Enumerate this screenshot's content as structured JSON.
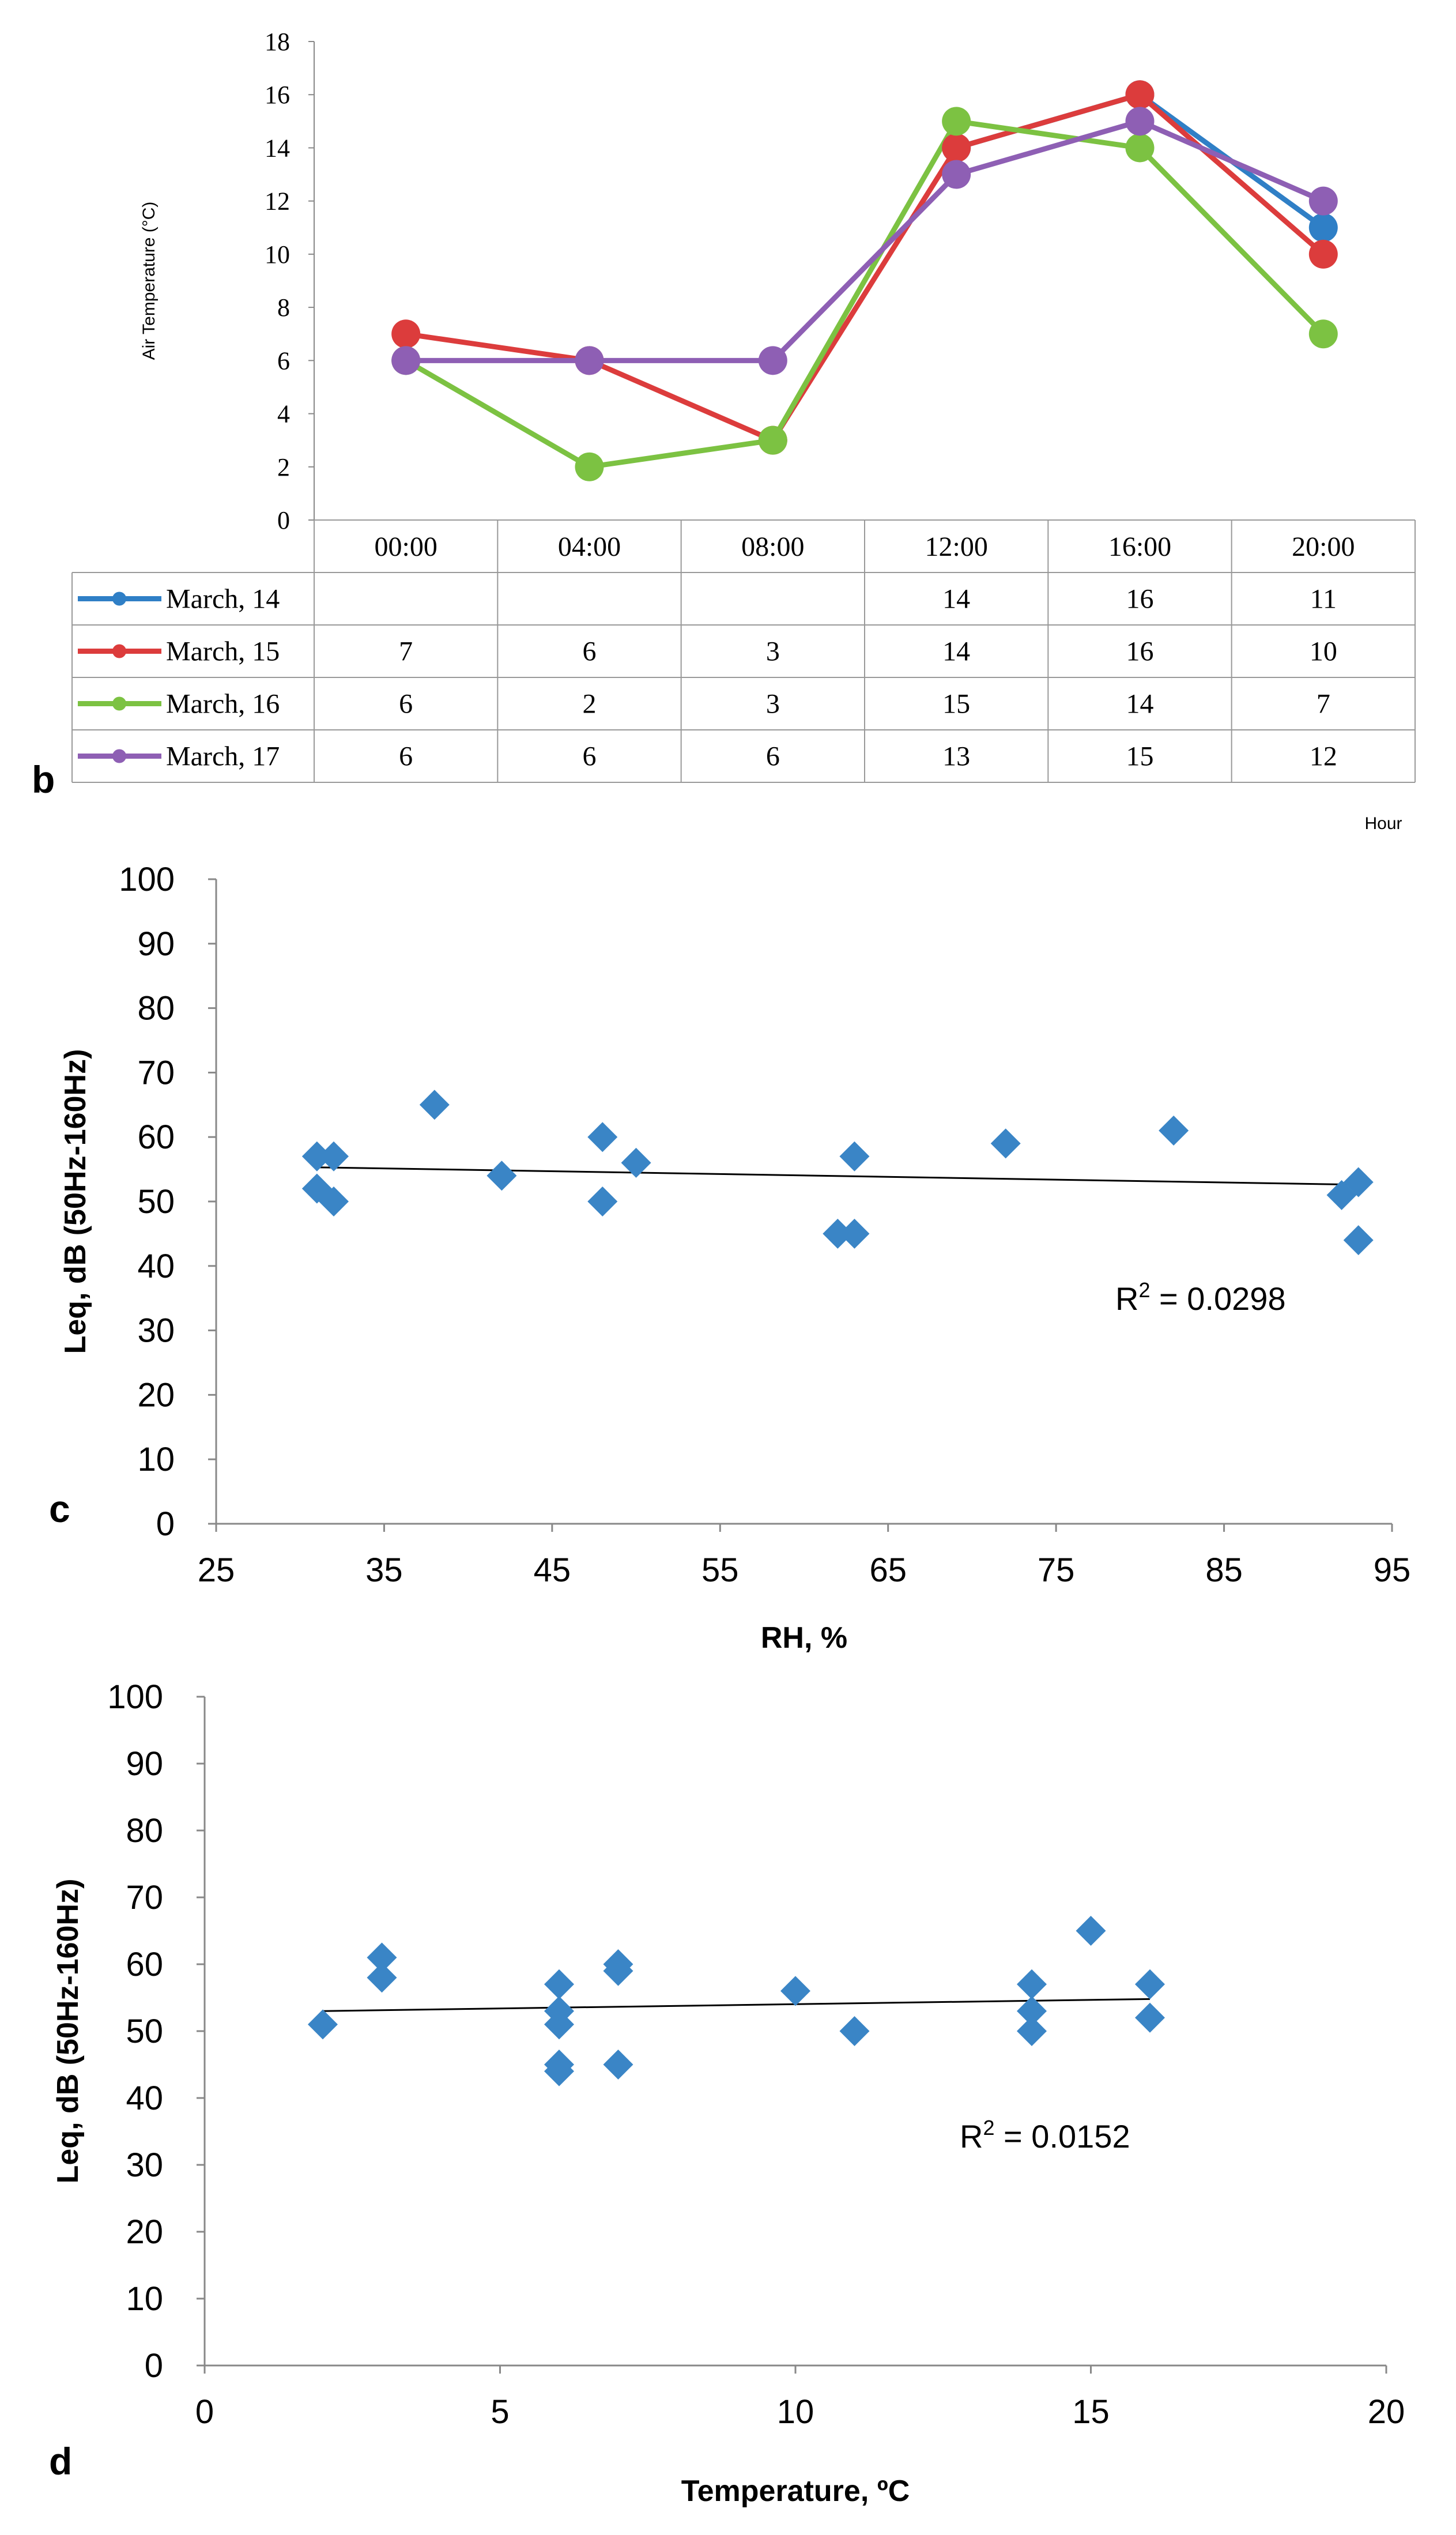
{
  "chart_data": [
    {
      "panel": "b",
      "type": "line",
      "ylabel": "Air Temperature (°C)",
      "xlabel": "Hour",
      "ylim": [
        0,
        18
      ],
      "yticks": [
        "0",
        "2",
        "4",
        "6",
        "8",
        "10",
        "12",
        "14",
        "16",
        "18"
      ],
      "categories": [
        "00:00",
        "04:00",
        "08:00",
        "12:00",
        "16:00",
        "20:00"
      ],
      "series": [
        {
          "name": "March, 14",
          "color": "#2f7fc6",
          "values": [
            null,
            null,
            null,
            14,
            16,
            11
          ],
          "labels": [
            "",
            "",
            "",
            "14",
            "16",
            "11"
          ]
        },
        {
          "name": "March, 15",
          "color": "#dc3c3c",
          "values": [
            7,
            6,
            3,
            14,
            16,
            10
          ],
          "labels": [
            "7",
            "6",
            "3",
            "14",
            "16",
            "10"
          ]
        },
        {
          "name": "March, 16",
          "color": "#7cc242",
          "values": [
            6,
            2,
            3,
            15,
            14,
            7
          ],
          "labels": [
            "6",
            "2",
            "3",
            "15",
            "14",
            "7"
          ]
        },
        {
          "name": "March, 17",
          "color": "#8e5fb4",
          "values": [
            6,
            6,
            6,
            13,
            15,
            12
          ],
          "labels": [
            "6",
            "6",
            "6",
            "13",
            "15",
            "12"
          ]
        }
      ]
    },
    {
      "panel": "c",
      "type": "scatter",
      "xlabel": "RH, %",
      "ylabel": "Leq, dB (50Hz-160Hz)",
      "xlim": [
        25,
        95
      ],
      "ylim": [
        0,
        100
      ],
      "xticks": [
        "25",
        "35",
        "45",
        "55",
        "65",
        "75",
        "85",
        "95"
      ],
      "yticks": [
        "0",
        "10",
        "20",
        "30",
        "40",
        "50",
        "60",
        "70",
        "80",
        "90",
        "100"
      ],
      "color": "#3a85c6",
      "points": [
        [
          31,
          57
        ],
        [
          31,
          52
        ],
        [
          32,
          57
        ],
        [
          32,
          50
        ],
        [
          38,
          65
        ],
        [
          42,
          54
        ],
        [
          48,
          60
        ],
        [
          48,
          50
        ],
        [
          50,
          56
        ],
        [
          62,
          45
        ],
        [
          63,
          45
        ],
        [
          63,
          57
        ],
        [
          72,
          59
        ],
        [
          82,
          61
        ],
        [
          92,
          51
        ],
        [
          93,
          53
        ],
        [
          93,
          44
        ]
      ],
      "trend": {
        "x": [
          31,
          93
        ],
        "y": [
          55.3,
          52.6
        ]
      },
      "r2_label": "R",
      "r2_sup": "2",
      "r2_value": " = 0.0298"
    },
    {
      "panel": "d",
      "type": "scatter",
      "xlabel": "Temperature, ºC",
      "ylabel": "Leq, dB (50Hz-160Hz)",
      "xlim": [
        0,
        20
      ],
      "ylim": [
        0,
        100
      ],
      "xticks": [
        "0",
        "5",
        "10",
        "15",
        "20"
      ],
      "yticks": [
        "0",
        "10",
        "20",
        "30",
        "40",
        "50",
        "60",
        "70",
        "80",
        "90",
        "100"
      ],
      "color": "#3a85c6",
      "points": [
        [
          2,
          51
        ],
        [
          3,
          61
        ],
        [
          3,
          58
        ],
        [
          6,
          57
        ],
        [
          6,
          53
        ],
        [
          6,
          51
        ],
        [
          6,
          45
        ],
        [
          6,
          44
        ],
        [
          7,
          60
        ],
        [
          7,
          59
        ],
        [
          7,
          45
        ],
        [
          10,
          56
        ],
        [
          11,
          50
        ],
        [
          14,
          57
        ],
        [
          14,
          53
        ],
        [
          14,
          50
        ],
        [
          15,
          65
        ],
        [
          16,
          57
        ],
        [
          16,
          52
        ]
      ],
      "trend": {
        "x": [
          2,
          16
        ],
        "y": [
          53.0,
          54.8
        ]
      },
      "r2_label": "R",
      "r2_sup": "2",
      "r2_value": " = 0.0152"
    }
  ]
}
